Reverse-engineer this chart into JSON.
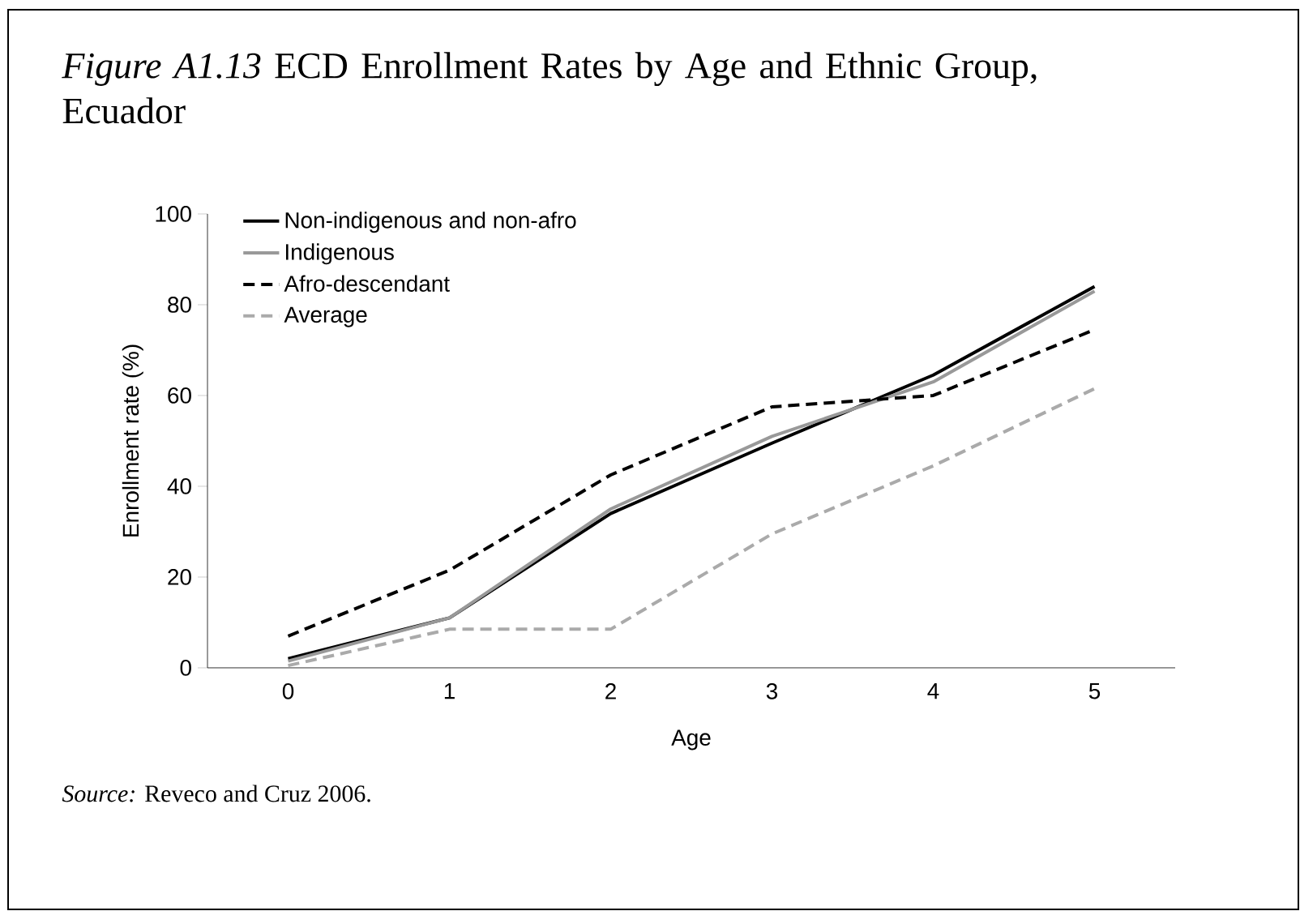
{
  "chart_data": {
    "type": "line",
    "title": "*Figure A1.13* ECD Enrollment Rates by Age and Ethnic Group, Ecuador",
    "xlabel": "Age",
    "ylabel": "Enrollment rate (%)",
    "categories": [
      "0",
      "1",
      "2",
      "3",
      "4",
      "5"
    ],
    "series": [
      {
        "name": "Non-indigenous and non-afro",
        "color": "#000000",
        "line_style": "solid",
        "values": [
          2,
          11,
          34,
          49.5,
          64.5,
          84
        ]
      },
      {
        "name": "Indigenous",
        "color": "#999999",
        "line_style": "solid",
        "values": [
          1.5,
          11,
          35,
          51,
          63,
          83
        ]
      },
      {
        "name": "Afro-descendant",
        "color": "#000000",
        "line_style": "dashed",
        "values": [
          7,
          21.5,
          42.5,
          57.5,
          60,
          74.5
        ]
      },
      {
        "name": "Average",
        "color": "#aaaaaa",
        "line_style": "dashed",
        "values": [
          0.5,
          8.5,
          8.5,
          29.5,
          44.5,
          61.5
        ]
      }
    ],
    "ylim": [
      0,
      100
    ],
    "yticks": [
      0,
      20,
      40,
      60,
      80,
      100
    ],
    "legend": "top left",
    "grid": false,
    "marker": "none",
    "annotations": [
      "*Source:* Reveco and Cruz 2006."
    ]
  }
}
